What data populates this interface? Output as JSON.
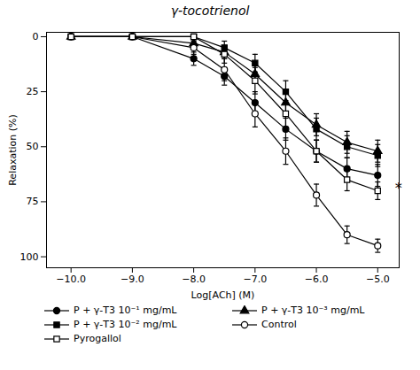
{
  "chart_data": {
    "type": "line",
    "title": "γ-tocotrienol",
    "xlabel": "Log[ACh] (M)",
    "ylabel": "Relaxation (%)",
    "x": [
      -10,
      -9,
      -8,
      -7.5,
      -7,
      -6.5,
      -6,
      -5.5,
      -5
    ],
    "series": [
      {
        "name": "P + γ-T3 10⁻¹ mg/mL",
        "color": "black",
        "marker": "circle",
        "values": [
          0,
          0,
          10,
          18,
          30,
          42,
          52,
          60,
          63
        ],
        "yerr": [
          0,
          0,
          3,
          4,
          5,
          5,
          5,
          5,
          5
        ]
      },
      {
        "name": "P + γ-T3 10⁻³ mg/mL",
        "color": "black",
        "marker": "triangle",
        "values": [
          0,
          0,
          3,
          7,
          17,
          30,
          40,
          48,
          52
        ],
        "yerr": [
          0,
          0,
          2,
          3,
          4,
          5,
          5,
          5,
          5
        ]
      },
      {
        "name": "P + γ-T3 10⁻² mg/mL",
        "color": "black",
        "marker": "square",
        "values": [
          0,
          0,
          0,
          5,
          12,
          25,
          42,
          50,
          54
        ],
        "yerr": [
          0,
          0,
          0,
          3,
          4,
          5,
          5,
          5,
          5
        ]
      },
      {
        "name": "Control",
        "color": "black",
        "marker": "circle-open",
        "values": [
          0,
          0,
          5,
          15,
          35,
          52,
          72,
          90,
          95
        ],
        "yerr": [
          0,
          0,
          3,
          5,
          6,
          6,
          5,
          4,
          3
        ]
      },
      {
        "name": "Pyrogallol",
        "color": "black",
        "marker": "square-open",
        "values": [
          0,
          0,
          0,
          8,
          20,
          35,
          52,
          65,
          70
        ],
        "yerr": [
          0,
          0,
          0,
          4,
          6,
          6,
          5,
          5,
          4
        ]
      }
    ],
    "xlim": [
      -10.4,
      -4.65
    ],
    "xticks": [
      -10,
      -9,
      -8,
      -7,
      -6,
      -5
    ],
    "ylim": [
      105,
      -2
    ],
    "yticks": [
      0,
      25,
      50,
      75,
      100
    ],
    "annotations": [
      {
        "text": "*",
        "x": -4.72,
        "y": 69
      }
    ],
    "grid": false,
    "legend": "bottom"
  }
}
